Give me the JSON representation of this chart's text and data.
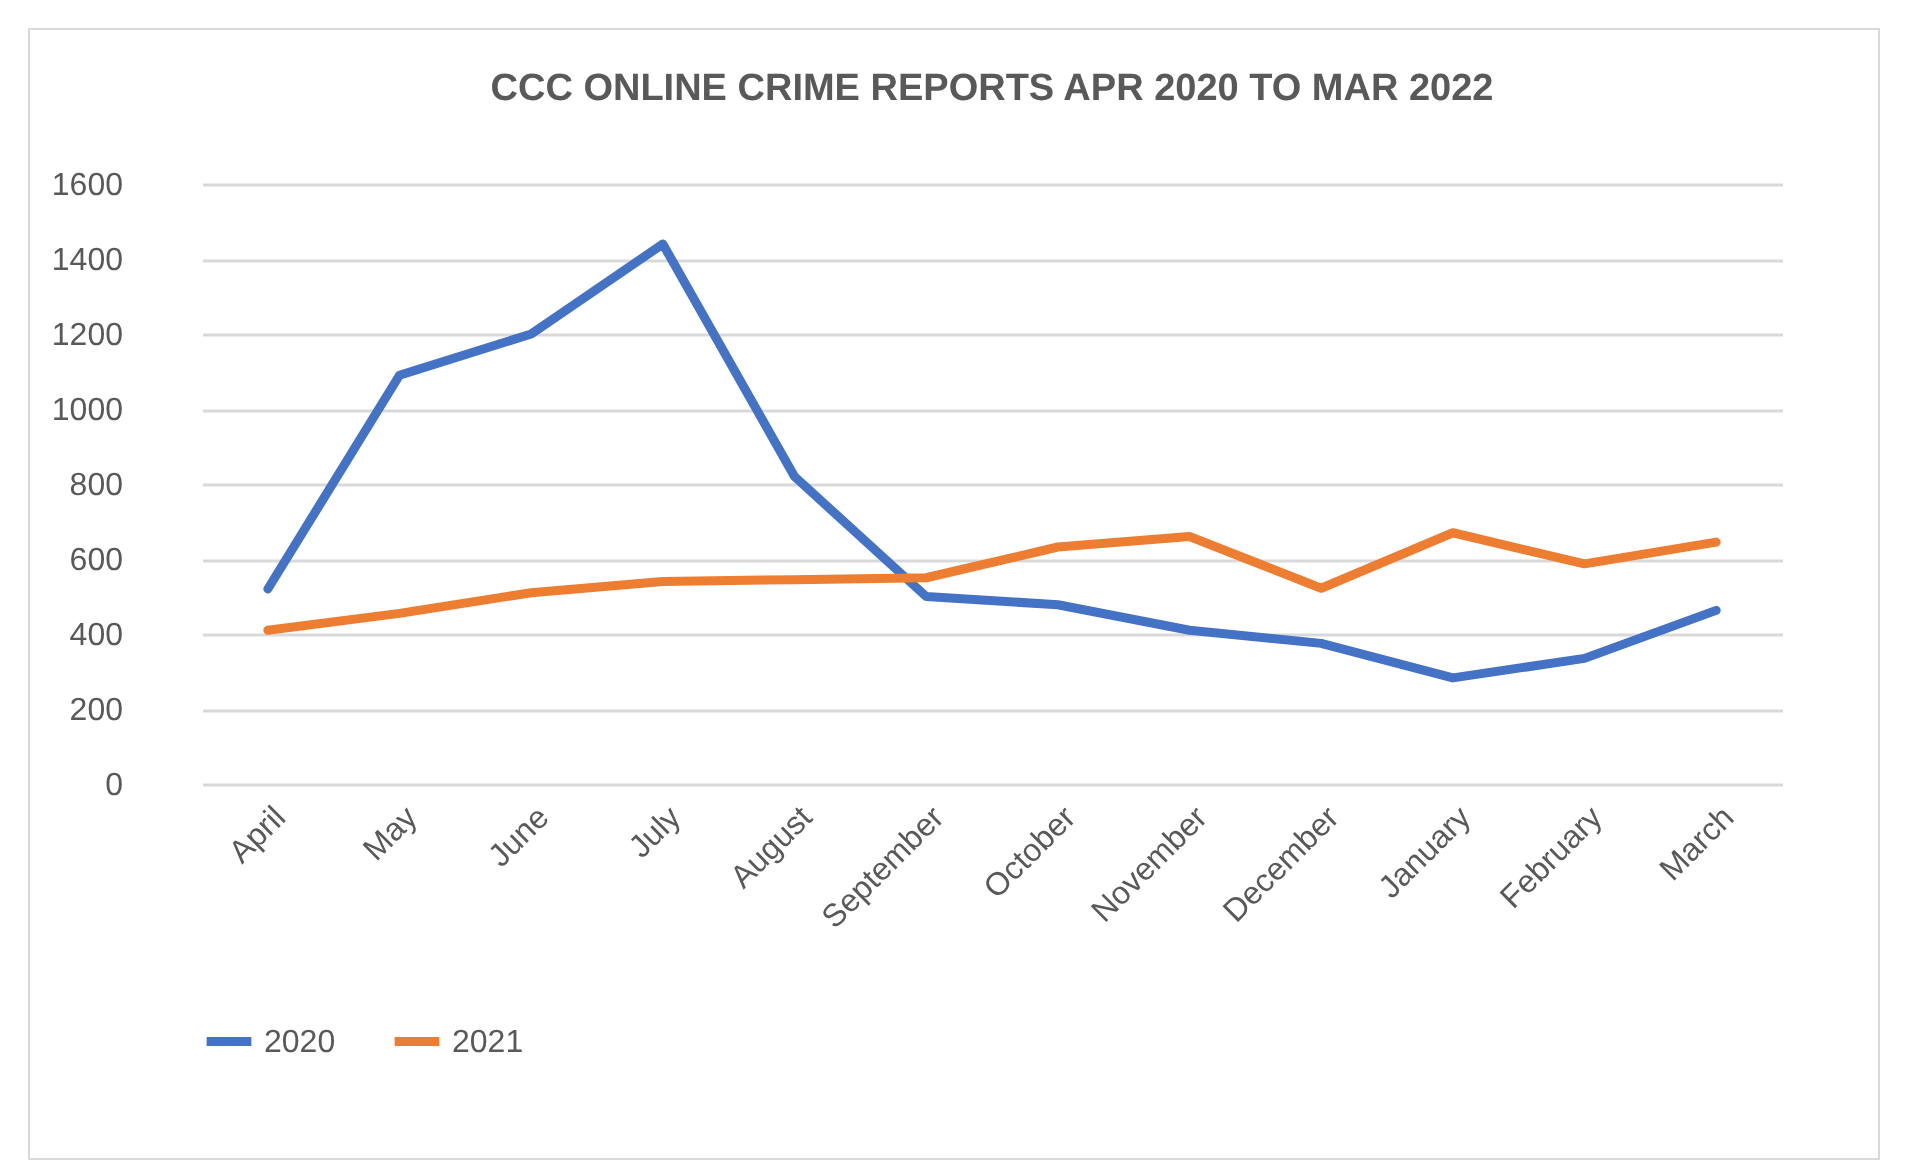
{
  "chart_data": {
    "type": "line",
    "title": "CCC ONLINE CRIME REPORTS APR 2020 TO MAR 2022",
    "categories": [
      "April",
      "May",
      "June",
      "July",
      "August",
      "September",
      "October",
      "November",
      "December",
      "January",
      "February",
      "March"
    ],
    "series": [
      {
        "name": "2020",
        "color": "#4472c4",
        "values": [
          520,
          1090,
          1200,
          1440,
          820,
          500,
          478,
          410,
          375,
          283,
          335,
          463
        ]
      },
      {
        "name": "2021",
        "color": "#ed7d31",
        "values": [
          410,
          455,
          510,
          540,
          545,
          550,
          632,
          660,
          522,
          670,
          587,
          645
        ]
      }
    ],
    "ylim": [
      0,
      1600
    ],
    "yticks": [
      0,
      200,
      400,
      600,
      800,
      1000,
      1200,
      1400,
      1600
    ],
    "grid": "y",
    "legend": "bottom",
    "marker": "none",
    "line_style": "solid"
  }
}
